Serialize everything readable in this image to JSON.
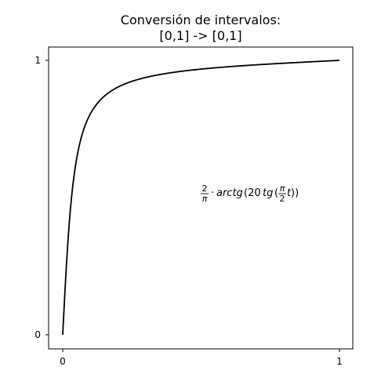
{
  "chart_data": {
    "type": "line",
    "title_lines": [
      "Conversión de intervalos:",
      "[0,1] -> [0,1]"
    ],
    "xlabel": "",
    "ylabel": "",
    "xlim": [
      0,
      1
    ],
    "ylim": [
      0,
      1
    ],
    "xticks": [
      0,
      1
    ],
    "xtick_labels": [
      "0",
      "1"
    ],
    "yticks": [
      0,
      1
    ],
    "ytick_labels": [
      "0",
      "1"
    ],
    "grid": false,
    "series": [
      {
        "color": "#000000",
        "function": "2/pi * arctan(20 * tan(pi/2 * t))",
        "x": [
          0,
          0.005,
          0.01,
          0.02,
          0.03,
          0.04,
          0.05,
          0.07,
          0.1,
          0.15,
          0.2,
          0.3,
          0.4,
          0.5,
          0.6,
          0.7,
          0.8,
          0.9,
          1.0
        ],
        "y": [
          0,
          0.1,
          0.19,
          0.36,
          0.48,
          0.57,
          0.63,
          0.72,
          0.79,
          0.86,
          0.895,
          0.933,
          0.954,
          0.968,
          0.979,
          0.986,
          0.992,
          0.996,
          1.0
        ]
      }
    ],
    "annotation": {
      "frac_num": "2",
      "frac_den": "π",
      "cdot": "·",
      "func": "arctg",
      "open": "(20",
      "tg": "tg",
      "paren2": "(",
      "inner_num": "π",
      "inner_den": "2",
      "var": "t",
      "close": "))"
    }
  }
}
